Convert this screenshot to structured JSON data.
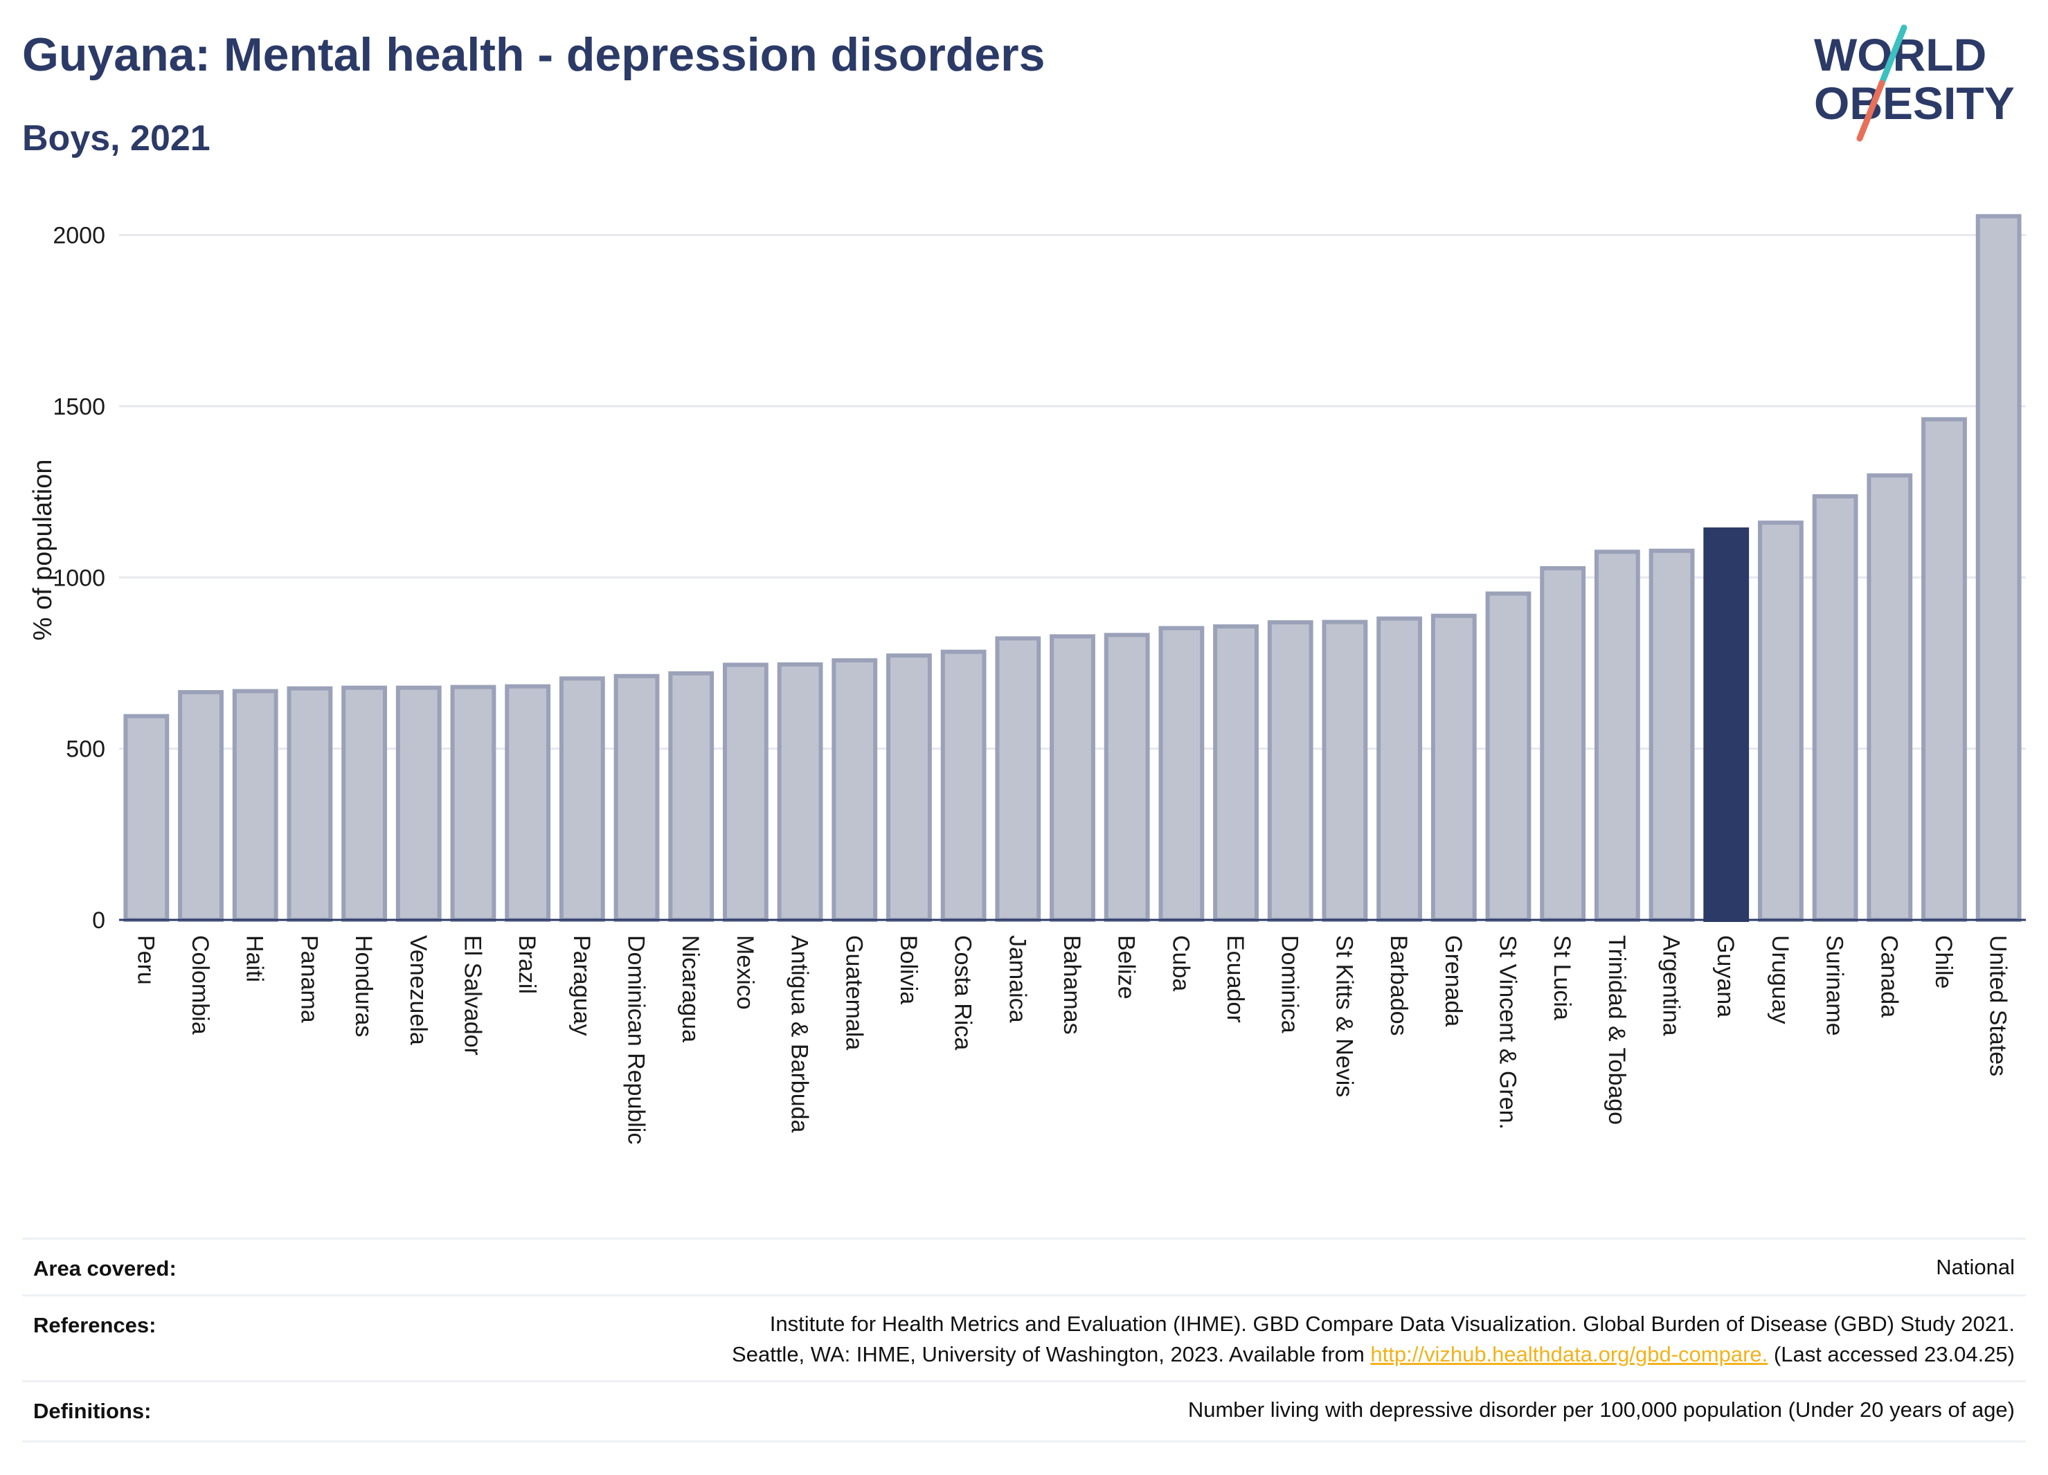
{
  "header": {
    "title": "Guyana: Mental health - depression disorders",
    "subtitle": "Boys, 2021"
  },
  "logo": {
    "line1": "WORLD",
    "line2": "OBESITY",
    "colors": {
      "navy": "#2b3a67",
      "teal": "#3cc0c0",
      "coral": "#e8705a"
    }
  },
  "chart_data": {
    "type": "bar",
    "title": "Guyana: Mental health - depression disorders",
    "subtitle": "Boys, 2021",
    "xlabel": "",
    "ylabel": "% of population",
    "ylim": [
      0,
      2080
    ],
    "yticks": [
      0,
      500,
      1000,
      1500,
      2000
    ],
    "grid": true,
    "highlight": "Guyana",
    "colors": {
      "bar": "#bfc3d0",
      "bar_edge": "#9aa1b8",
      "highlight": "#2b3a67",
      "grid": "#e6e8ee",
      "axis": "#2b3a67"
    },
    "categories": [
      "Peru",
      "Colombia",
      "Haiti",
      "Panama",
      "Honduras",
      "Venezuela",
      "El Salvador",
      "Brazil",
      "Paraguay",
      "Dominican Republic",
      "Nicaragua",
      "Mexico",
      "Antigua & Barbuda",
      "Guatemala",
      "Bolivia",
      "Costa Rica",
      "Jamaica",
      "Bahamas",
      "Belize",
      "Cuba",
      "Ecuador",
      "Dominica",
      "St Kitts & Nevis",
      "Barbados",
      "Grenada",
      "St Vincent & Gren.",
      "St Lucia",
      "Trinidad & Tobago",
      "Argentina",
      "Guyana",
      "Uruguay",
      "Suriname",
      "Canada",
      "Chile",
      "United States"
    ],
    "values": [
      595,
      665,
      668,
      676,
      678,
      678,
      680,
      682,
      705,
      712,
      720,
      745,
      746,
      758,
      772,
      783,
      822,
      828,
      832,
      852,
      857,
      869,
      870,
      880,
      888,
      953,
      1027,
      1075,
      1078,
      1140,
      1160,
      1237,
      1298,
      1462,
      2055
    ]
  },
  "info": {
    "area_label": "Area covered:",
    "area_value": "National",
    "references_label": "References:",
    "references_line1": "Institute for Health Metrics and Evaluation (IHME). GBD Compare Data Visualization. Global Burden of Disease (GBD) Study 2021.",
    "references_line2_pre": "Seattle, WA: IHME, University of Washington, 2023. Available from ",
    "references_link": "http://vizhub.healthdata.org/gbd-compare.",
    "references_line2_post": " (Last accessed 23.04.25)",
    "definitions_label": "Definitions:",
    "definitions_value": "Number living with depressive disorder per 100,000 population (Under 20 years of age)"
  }
}
